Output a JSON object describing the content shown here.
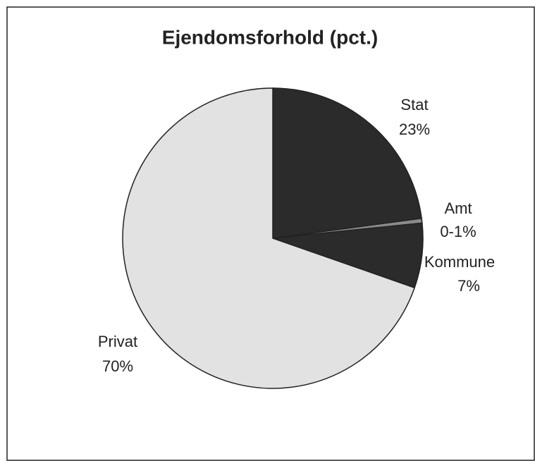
{
  "chart_data": {
    "type": "pie",
    "title": "Ejendomsforhold (pct.)",
    "categories": [
      "Stat",
      "Amt",
      "Kommune",
      "Privat"
    ],
    "values": [
      23,
      0.5,
      7,
      70
    ],
    "value_labels": [
      "23%",
      "0-1%",
      "7%",
      "70%"
    ],
    "colors": [
      "#2b2b2b",
      "#8a8a8a",
      "#2b2b2b",
      "#e2e2e2"
    ]
  }
}
